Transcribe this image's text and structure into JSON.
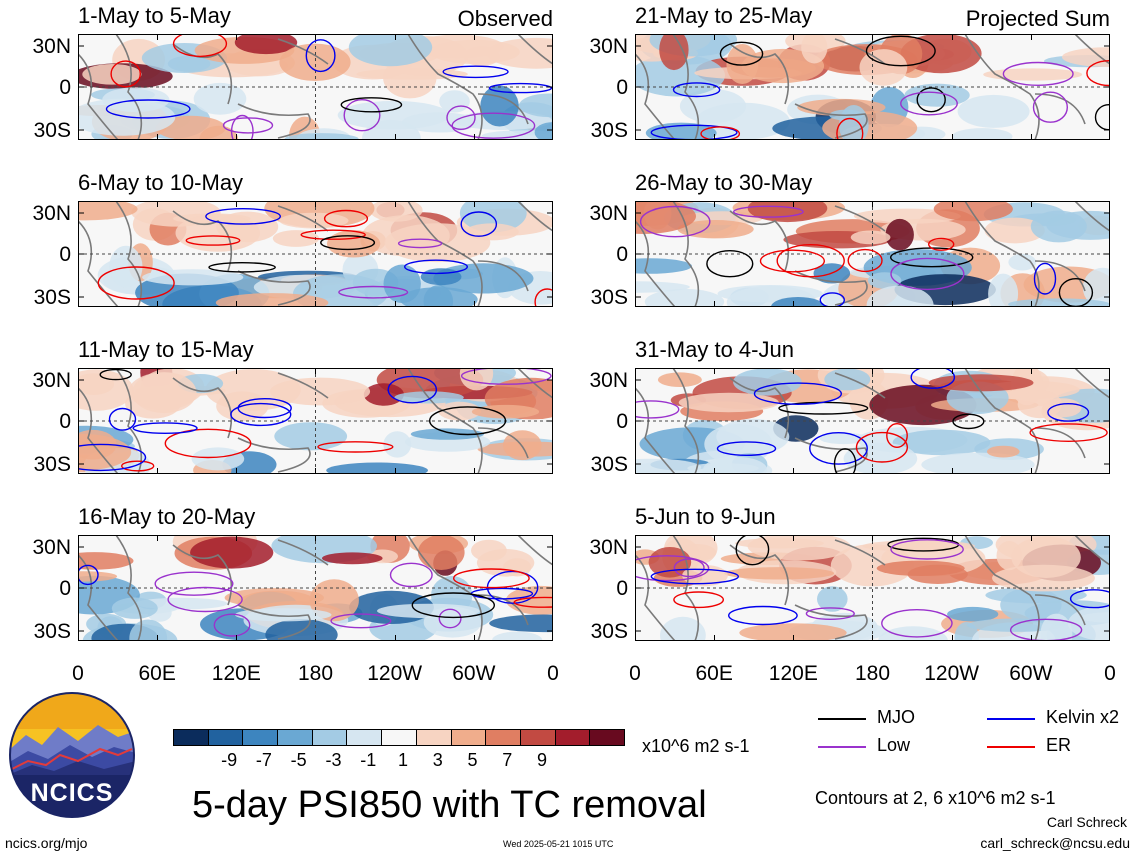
{
  "panels": [
    {
      "label": "1-May to 5-May",
      "tag": "Observed"
    },
    {
      "label": "6-May to 10-May",
      "tag": ""
    },
    {
      "label": "11-May to 15-May",
      "tag": ""
    },
    {
      "label": "16-May to 20-May",
      "tag": ""
    },
    {
      "label": "21-May to 25-May",
      "tag": "Projected Sum"
    },
    {
      "label": "26-May to 30-May",
      "tag": ""
    },
    {
      "label": "31-May to 4-Jun",
      "tag": ""
    },
    {
      "label": "5-Jun to 9-Jun",
      "tag": ""
    }
  ],
  "y_ticks": [
    "30N",
    "0",
    "30S"
  ],
  "x_ticks": [
    "0",
    "60E",
    "120E",
    "180",
    "120W",
    "60W",
    "0"
  ],
  "colorbar": {
    "ticks": [
      "-9",
      "-7",
      "-5",
      "-3",
      "-1",
      "1",
      "3",
      "5",
      "7",
      "9"
    ],
    "unit": "x10^6 m2 s-1",
    "colors": [
      "#0b2c5c",
      "#21629f",
      "#3d85bf",
      "#6aa8d3",
      "#a3cbe4",
      "#d6e6f1",
      "#f7f7f7",
      "#f7d4c2",
      "#f0ad8c",
      "#e07e62",
      "#c24a42",
      "#a31d2c",
      "#680a1f"
    ]
  },
  "legend": {
    "items": [
      {
        "label": "MJO",
        "color": "#000000"
      },
      {
        "label": "Kelvin x2",
        "color": "#0000ee"
      },
      {
        "label": "Low",
        "color": "#9a32cd"
      },
      {
        "label": "ER",
        "color": "#ee0000"
      }
    ],
    "contours_note": "Contours at 2, 6 x10^6 m2 s-1"
  },
  "main_title": "5-day PSI850 with TC removal",
  "logo_text": "NCICS",
  "footer": {
    "left": "ncics.org/mjo",
    "center": "Wed 2025-05-21 1015 UTC",
    "author": "Carl Schreck",
    "email": "carl_schreck@ncsu.edu"
  }
}
